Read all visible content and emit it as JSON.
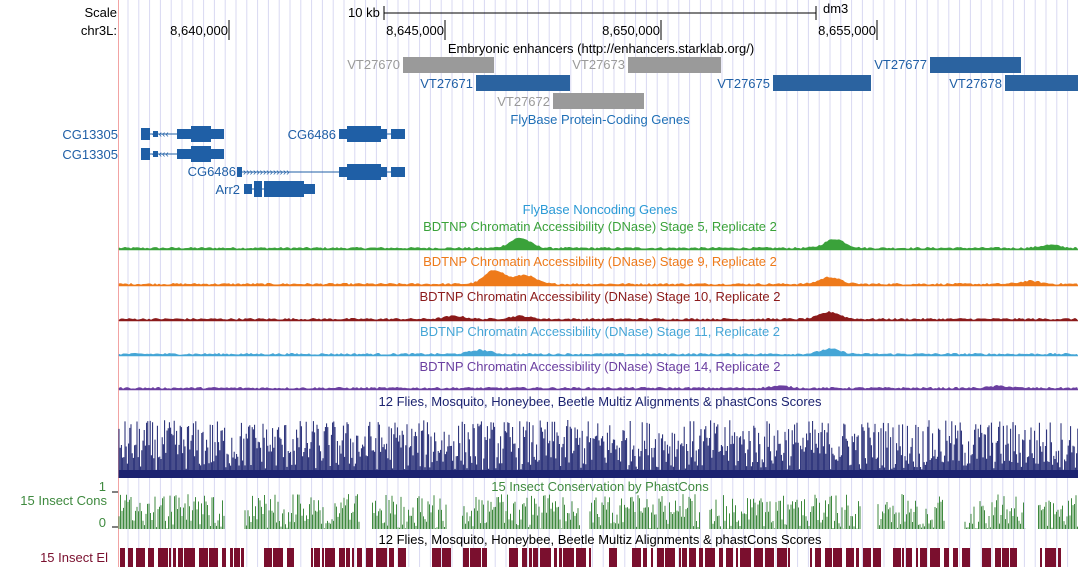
{
  "ruler": {
    "scale_label": "Scale",
    "chrom_label": "chr3L:",
    "scale_bar_label": "10 kb",
    "assembly": "dm3",
    "ticks": [
      "8,640,000",
      "8,645,000",
      "8,650,000",
      "8,655,000"
    ]
  },
  "tracks": {
    "enhancers": {
      "title": "Embryonic enhancers (http://enhancers.starklab.org/)",
      "items": [
        {
          "name": "VT27670",
          "state": "gray"
        },
        {
          "name": "VT27671",
          "state": "blue"
        },
        {
          "name": "VT27672",
          "state": "gray"
        },
        {
          "name": "VT27673",
          "state": "gray"
        },
        {
          "name": "VT27675",
          "state": "blue"
        },
        {
          "name": "VT27677",
          "state": "blue"
        },
        {
          "name": "VT27678",
          "state": "blue"
        }
      ]
    },
    "protein_coding": {
      "title": "FlyBase Protein-Coding Genes",
      "genes": [
        "CG13305",
        "CG13305",
        "CG6486",
        "CG6486",
        "Arr2"
      ]
    },
    "noncoding": {
      "title": "FlyBase Noncoding Genes"
    },
    "dnase": [
      {
        "title": "BDTNP Chromatin Accessibility (DNase) Stage 5, Replicate 2",
        "color": "#3aa23a"
      },
      {
        "title": "BDTNP Chromatin Accessibility (DNase) Stage 9, Replicate 2",
        "color": "#ee7a1a"
      },
      {
        "title": "BDTNP Chromatin Accessibility (DNase) Stage 10, Replicate 2",
        "color": "#8b1a1a"
      },
      {
        "title": "BDTNP Chromatin Accessibility (DNase) Stage 11, Replicate 2",
        "color": "#45a6d6"
      },
      {
        "title": "BDTNP Chromatin Accessibility (DNase) Stage 14, Replicate 2",
        "color": "#6b3fa0"
      }
    ],
    "multiz": {
      "title": "12 Flies, Mosquito, Honeybee, Beetle Multiz Alignments & phastCons Scores",
      "color": "#1c2370"
    },
    "phastcons": {
      "title": "15 Insect Conservation by PhastCons",
      "side_label": "15 Insect Cons",
      "axis_max": "1",
      "axis_min": "0",
      "color": "#3f8a3f"
    },
    "elements": {
      "title": "12 Flies, Mosquito, Honeybee, Beetle Multiz Alignments & phastCons Scores",
      "side_label": "15 Insect El",
      "color": "#7a0f2e"
    }
  },
  "colors": {
    "gene_blue": "#1f5fa6",
    "item_gray": "#9a9a9a",
    "item_blue": "#2b63a0",
    "grid": "#d9d9f2",
    "gutter": "#f2a3a3"
  }
}
